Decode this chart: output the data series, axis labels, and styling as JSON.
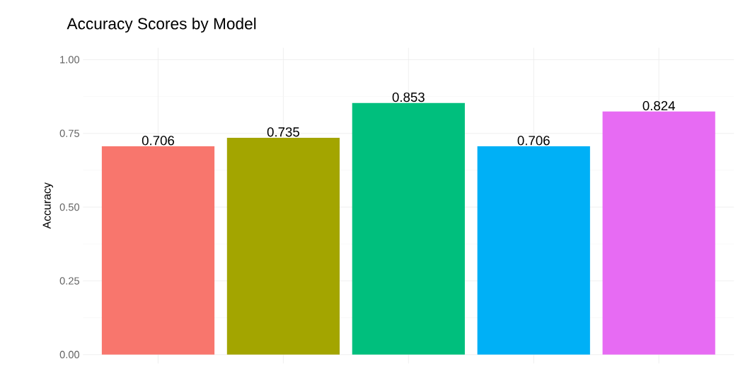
{
  "chart_data": {
    "type": "bar",
    "title": "Accuracy Scores by Model",
    "ylabel": "Accuracy",
    "categories": [
      null,
      null,
      null,
      null,
      null
    ],
    "values": [
      0.706,
      0.735,
      0.853,
      0.706,
      0.824
    ],
    "colors": [
      "#f8766d",
      "#a3a500",
      "#00bf7d",
      "#00b0f6",
      "#e76bf3"
    ],
    "ylim": [
      -0.03,
      1.04
    ],
    "yticks": [
      {
        "value": 0,
        "label": "0.00"
      },
      {
        "value": 0.25,
        "label": "0.25"
      },
      {
        "value": 0.5,
        "label": "0.50"
      },
      {
        "value": 0.75,
        "label": "0.75"
      },
      {
        "value": 1,
        "label": "1.00"
      }
    ],
    "data_labels": true,
    "grid": true
  }
}
